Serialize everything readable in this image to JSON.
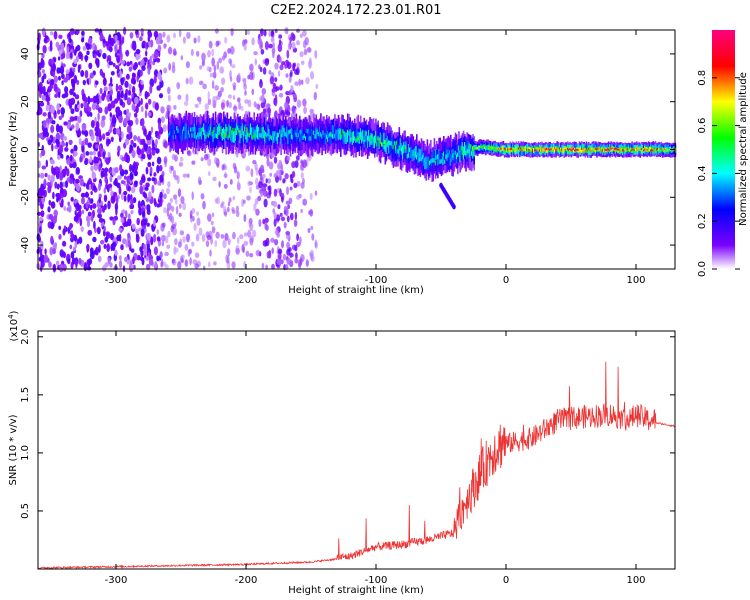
{
  "title": "C2E2.2024.172.23.01.R01",
  "chart_data": [
    {
      "type": "heatmap",
      "xlabel": "Height of straight line (km)",
      "ylabel": "Frequency (Hz)",
      "xlim": [
        -360,
        130
      ],
      "ylim": [
        -50,
        50
      ],
      "xticks": [
        -300,
        -200,
        -100,
        0,
        100
      ],
      "yticks": [
        -40,
        -20,
        0,
        20,
        40
      ],
      "grid": false,
      "colorbar": {
        "label": "Normalized spectral amplitude",
        "range": [
          0,
          1
        ],
        "ticks": [
          0.0,
          0.2,
          0.4,
          0.6,
          0.8
        ],
        "colormap": [
          "#ffffff",
          "#7a00ff",
          "#0000ff",
          "#00ffff",
          "#00ff00",
          "#ffff00",
          "#ff0000",
          "#ff0080"
        ]
      },
      "features": {
        "noise_region_x": [
          -360,
          -145
        ],
        "main_band": [
          {
            "x": -260,
            "f": 7,
            "amp": 0.3
          },
          {
            "x": -230,
            "f": 7,
            "amp": 0.45
          },
          {
            "x": -200,
            "f": 7,
            "amp": 0.5
          },
          {
            "x": -160,
            "f": 6,
            "amp": 0.35
          },
          {
            "x": -120,
            "f": 6,
            "amp": 0.45
          },
          {
            "x": -100,
            "f": 4,
            "amp": 0.5
          },
          {
            "x": -80,
            "f": 0,
            "amp": 0.45
          },
          {
            "x": -60,
            "f": -5,
            "amp": 0.4
          },
          {
            "x": -40,
            "f": -2,
            "amp": 0.4
          },
          {
            "x": -20,
            "f": 1,
            "amp": 0.6
          },
          {
            "x": 0,
            "f": 0,
            "amp": 0.8
          },
          {
            "x": 50,
            "f": 0,
            "amp": 0.85
          },
          {
            "x": 100,
            "f": 0,
            "amp": 0.8
          },
          {
            "x": 130,
            "f": 0,
            "amp": 0.7
          }
        ],
        "secondary_streak": {
          "x": [
            -50,
            -40
          ],
          "f": [
            -15,
            -24
          ]
        }
      }
    },
    {
      "type": "line",
      "xlabel": "Height of straight line (km)",
      "ylabel": "SNR (10 * v/v)",
      "multiplier_label": "(x10",
      "multiplier_exp": "4",
      "multiplier_close": ")",
      "xlim": [
        -360,
        130
      ],
      "ylim": [
        0,
        2.05
      ],
      "xticks": [
        -300,
        -200,
        -100,
        0,
        100
      ],
      "yticks": [
        0.5,
        1.0,
        1.5,
        2.0
      ],
      "ytick_labels": [
        "0.5",
        "1.0",
        "1.5",
        "2.0"
      ],
      "grid": false,
      "color": "#ee3333",
      "x": [
        -360,
        -300,
        -250,
        -200,
        -150,
        -120,
        -100,
        -80,
        -60,
        -40,
        -30,
        -20,
        -10,
        0,
        20,
        40,
        60,
        80,
        95,
        100,
        110,
        115,
        130
      ],
      "y": [
        0.01,
        0.02,
        0.03,
        0.04,
        0.06,
        0.1,
        0.18,
        0.2,
        0.24,
        0.3,
        0.55,
        0.75,
        0.95,
        1.05,
        1.1,
        1.25,
        1.28,
        1.3,
        1.25,
        1.3,
        1.25,
        1.26,
        1.23
      ]
    }
  ]
}
